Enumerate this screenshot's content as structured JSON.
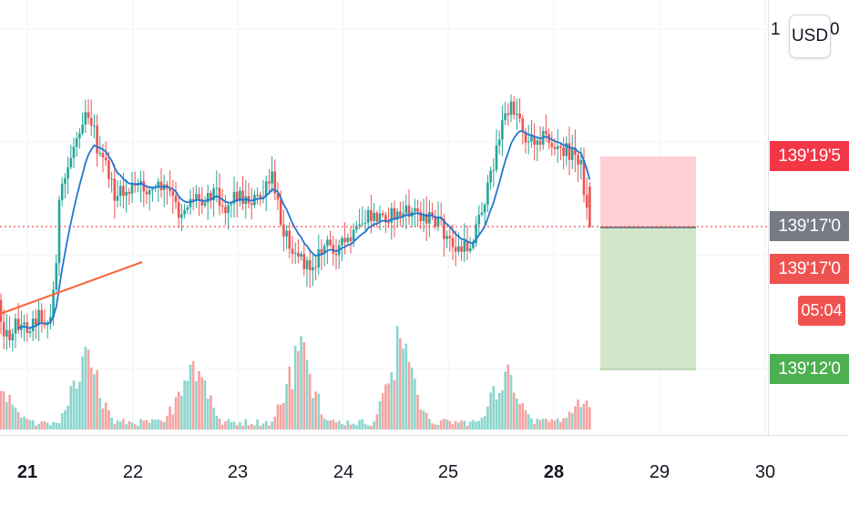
{
  "chart_data": {
    "type": "candlestick",
    "x_tick_labels": [
      "21",
      "22",
      "23",
      "24",
      "25",
      "28",
      "29",
      "30"
    ],
    "x_tick_bold": [
      "21",
      "28"
    ],
    "price_axis": {
      "visible_top_label_fragments": [
        "1",
        "0"
      ],
      "currency": "USD"
    },
    "price_labels": {
      "stop_loss": {
        "text": "139'19'5",
        "color": "#f23645"
      },
      "current_price": {
        "text": "139'17'0",
        "color": "#787b86"
      },
      "last_close": {
        "text": "139'17'0",
        "color": "#ef5350"
      },
      "countdown": {
        "text": "05:04",
        "color": "#ef5350"
      },
      "take_profit": {
        "text": "139'12'0",
        "color": "#4caf50"
      }
    },
    "colors": {
      "up": "#26a69a",
      "down": "#ef5350",
      "volume_up": "#8ad5cd",
      "volume_down": "#f5a3a0",
      "ma": "#2176d2",
      "trendline": "#f7643a",
      "stop_zone": "#ffcdd2",
      "target_zone": "#cfe5c8",
      "grid": "#f0f3fa"
    },
    "grid": true,
    "legend": "none"
  }
}
